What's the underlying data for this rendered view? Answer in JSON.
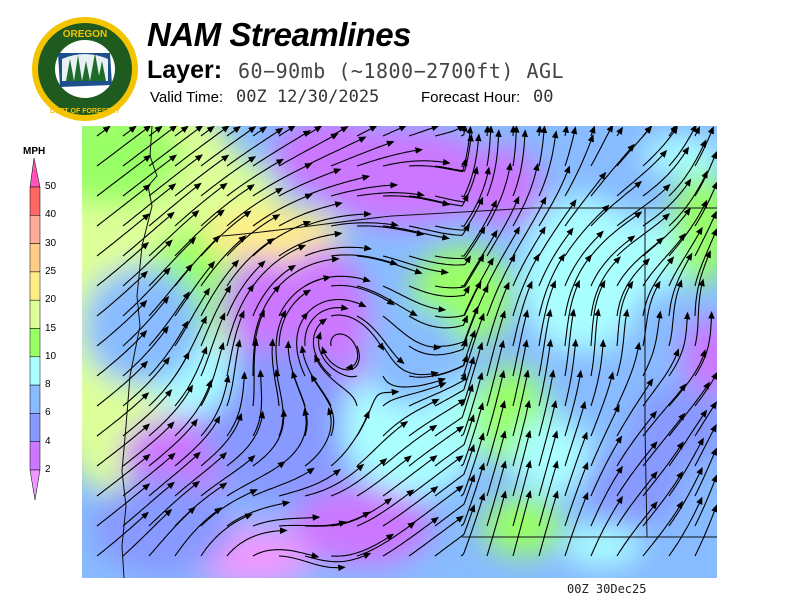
{
  "logo": {
    "top_text": "OREGON",
    "bottom_text": "DEPARTMENT OF FORESTRY"
  },
  "header": {
    "title": "NAM Streamlines",
    "layer_label": "Layer:",
    "layer_value": "60−90mb (~1800−2700ft) AGL",
    "valid_label": "Valid Time:",
    "valid_value": "00Z 12/30/2025",
    "forecast_label": "Forecast Hour:",
    "forecast_value": "00"
  },
  "legend": {
    "units": "MPH",
    "ticks": [
      "50",
      "40",
      "30",
      "25",
      "20",
      "15",
      "10",
      "8",
      "6",
      "4",
      "2"
    ],
    "colors": {
      "above_50": "#ff55bb",
      "40-50": "#ff6666",
      "30-40": "#ffaa99",
      "25-30": "#ffcc88",
      "20-25": "#ffee88",
      "15-20": "#ddff99",
      "10-15": "#99ff66",
      "8-10": "#aaffff",
      "6-8": "#88bbff",
      "4-6": "#8899ff",
      "2-4": "#cc77ff",
      "below_2": "#ee99ff"
    }
  },
  "footer": {
    "timestamp": "00Z 30Dec25"
  }
}
